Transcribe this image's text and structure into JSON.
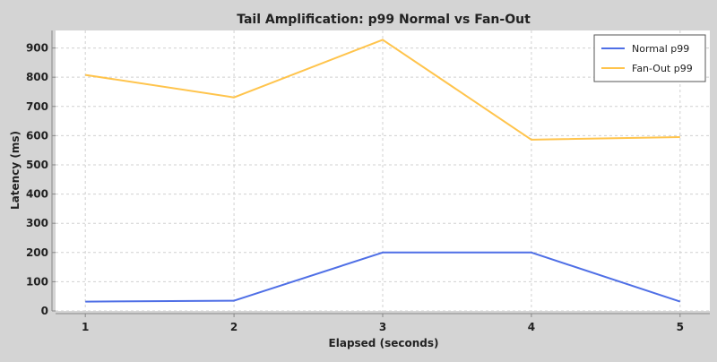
{
  "chart_data": {
    "type": "line",
    "title": "Tail Amplification: p99 Normal vs Fan-Out",
    "xlabel": "Elapsed (seconds)",
    "ylabel": "Latency (ms)",
    "x": [
      1,
      2,
      3,
      4,
      5
    ],
    "xlim": [
      0.8,
      5.2
    ],
    "ylim": [
      0,
      960
    ],
    "xticks": [
      1,
      2,
      3,
      4,
      5
    ],
    "yticks": [
      0,
      100,
      200,
      300,
      400,
      500,
      600,
      700,
      800,
      900
    ],
    "grid": true,
    "legend_position": "top-right",
    "series": [
      {
        "name": "Normal p99",
        "color": "#4f6fe6",
        "values": [
          32,
          35,
          200,
          200,
          32
        ]
      },
      {
        "name": "Fan-Out p99",
        "color": "#ffc44c",
        "values": [
          808,
          731,
          928,
          586,
          595
        ]
      }
    ]
  },
  "colors": {
    "background": "#d4d4d4",
    "plot_background": "#ffffff",
    "grid": "#d0d0d0",
    "axis": "#888888"
  }
}
